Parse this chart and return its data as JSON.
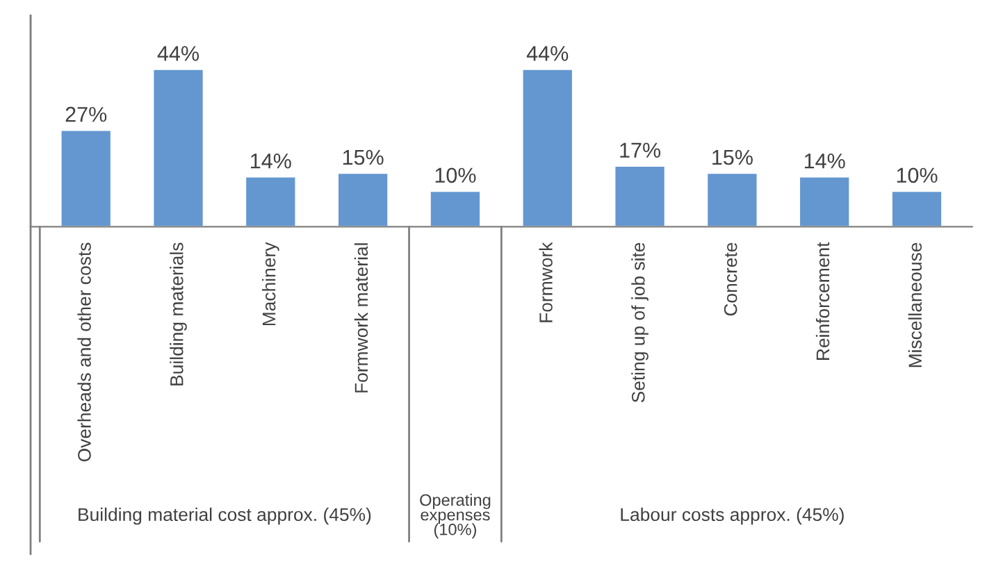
{
  "chart_data": {
    "type": "bar",
    "categories": [
      "Overheads and other costs",
      "Building materials",
      "Machinery",
      "Formwork material",
      null,
      "Formwork",
      "Seting up of job site",
      "Concrete",
      "Reinforcement",
      "Miscellaneouse"
    ],
    "values": [
      27,
      44,
      14,
      15,
      10,
      44,
      17,
      15,
      14,
      10
    ],
    "value_labels": [
      "27%",
      "44%",
      "14%",
      "15%",
      "10%",
      "44%",
      "17%",
      "15%",
      "14%",
      "10%"
    ],
    "color": "#6497d0",
    "annotations": [
      "Building material cost approx. (45%)",
      "Operating\nexpenses\n(10%)",
      "Labour costs approx. (45%)"
    ],
    "grid": false,
    "legend": false
  }
}
